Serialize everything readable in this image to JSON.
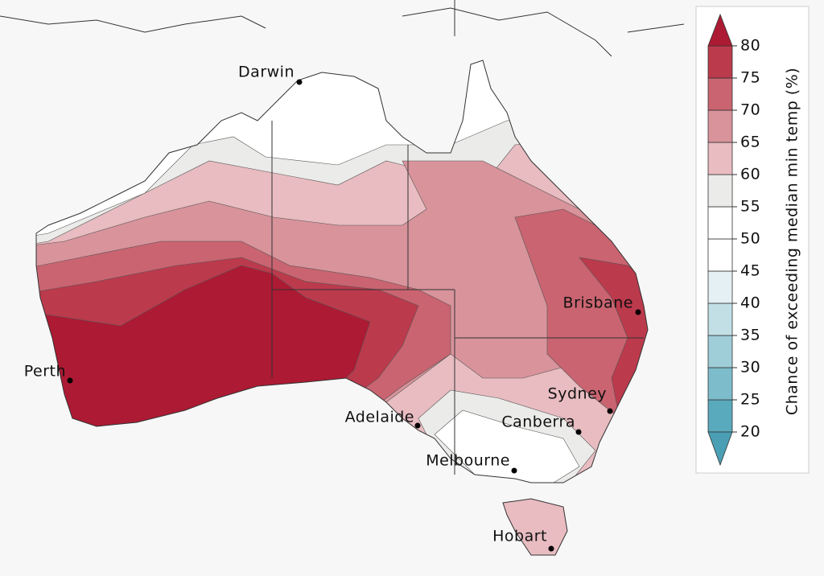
{
  "legend": {
    "title": "Chance of exceeding median min temp (%)",
    "ticks": [
      20,
      25,
      30,
      35,
      40,
      45,
      50,
      55,
      60,
      65,
      70,
      75,
      80
    ],
    "under_color": "#4a9fb4",
    "bin_colors": [
      "#5aaabd",
      "#7dbccb",
      "#9fcdd8",
      "#c2dfe6",
      "#e4f0f3",
      "#ffffff",
      "#ffffff",
      "#ebebe9",
      "#e8bcc1",
      "#d8939b",
      "#c96470",
      "#bb3a4c"
    ],
    "over_color": "#ad1a33"
  },
  "cities": [
    {
      "name": "Darwin"
    },
    {
      "name": "Brisbane"
    },
    {
      "name": "Perth"
    },
    {
      "name": "Sydney"
    },
    {
      "name": "Adelaide"
    },
    {
      "name": "Canberra"
    },
    {
      "name": "Melbourne"
    },
    {
      "name": "Hobart"
    }
  ]
}
